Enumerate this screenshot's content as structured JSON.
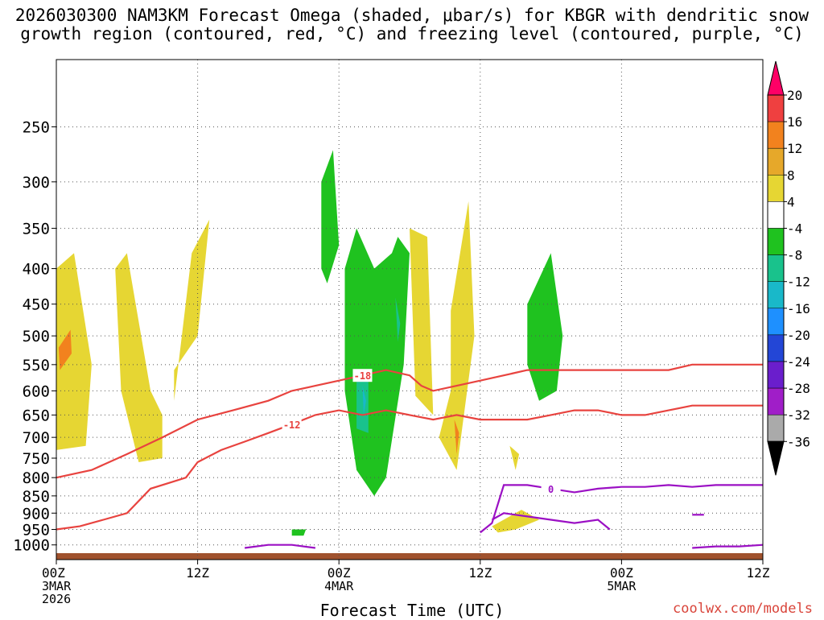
{
  "title_line1": "2026030300 NAM3KM Forecast Omega (shaded, μbar/s) for KBGR with dendritic snow",
  "title_line2": "growth region (contoured, red, °C) and freezing level (contoured, purple, °C)",
  "credit": "coolwx.com/models",
  "chart_data": {
    "type": "heatmap",
    "xlabel": "Forecast Time (UTC)",
    "ylabel": "",
    "x_ticks": [
      {
        "hour": 0,
        "label": "00Z",
        "date": "3MAR",
        "year": "2026"
      },
      {
        "hour": 12,
        "label": "12Z",
        "date": "",
        "year": ""
      },
      {
        "hour": 24,
        "label": "00Z",
        "date": "4MAR",
        "year": ""
      },
      {
        "hour": 36,
        "label": "12Z",
        "date": "",
        "year": ""
      },
      {
        "hour": 48,
        "label": "00Z",
        "date": "5MAR",
        "year": ""
      },
      {
        "hour": 60,
        "label": "12Z",
        "date": "",
        "year": ""
      }
    ],
    "xlim": [
      0,
      60
    ],
    "y_ticks": [
      250,
      300,
      350,
      400,
      450,
      500,
      550,
      600,
      650,
      700,
      750,
      800,
      850,
      900,
      950,
      1000
    ],
    "ylim": [
      1050,
      200
    ],
    "y_scale": "log",
    "grid": true,
    "colorbar": {
      "levels": [
        20,
        16,
        12,
        8,
        4,
        -4,
        -8,
        -12,
        -16,
        -20,
        -24,
        -28,
        -32,
        -36
      ],
      "colors": [
        "#ff0066",
        "#ef4040",
        "#f2821e",
        "#e6a82a",
        "#e6d633",
        "#ffffff",
        "#1fc21f",
        "#19c28c",
        "#19b8c9",
        "#1e90ff",
        "#2346d6",
        "#6a1ecc",
        "#a01ec8",
        "#aaaaaa",
        "#000000"
      ],
      "placement": "right"
    },
    "omega_areas": [
      {
        "color": "#e6d633",
        "t": [
          0.0,
          1.5,
          3.0,
          2.5,
          0.0
        ],
        "p": [
          400,
          380,
          550,
          720,
          730
        ]
      },
      {
        "color": "#f2821e",
        "t": [
          0.2,
          1.2,
          1.3,
          0.3
        ],
        "p": [
          520,
          490,
          530,
          560
        ]
      },
      {
        "color": "#e6d633",
        "t": [
          5.0,
          6.0,
          8.0,
          9.0,
          9.0,
          7.0,
          5.5
        ],
        "p": [
          400,
          380,
          600,
          650,
          750,
          760,
          600
        ]
      },
      {
        "color": "#e6d633",
        "t": [
          10.0,
          12.0,
          13.0,
          11.5,
          10.0
        ],
        "p": [
          560,
          500,
          340,
          380,
          620
        ]
      },
      {
        "color": "#1fc21f",
        "t": [
          22.5,
          23.5,
          24.0,
          23.0,
          22.5
        ],
        "p": [
          300,
          270,
          370,
          420,
          400
        ]
      },
      {
        "color": "#1fc21f",
        "t": [
          24.5,
          25.5,
          27.0,
          28.5,
          29.0,
          30.0,
          29.5,
          28.0,
          27.0,
          25.5,
          24.5
        ],
        "p": [
          400,
          350,
          400,
          380,
          360,
          380,
          550,
          800,
          850,
          780,
          600
        ]
      },
      {
        "color": "#19c28c",
        "t": [
          25.5,
          26.5,
          26.5,
          25.5
        ],
        "p": [
          570,
          580,
          690,
          680
        ]
      },
      {
        "color": "#19b8c9",
        "t": [
          26.0,
          26.3,
          26.1
        ],
        "p": [
          590,
          620,
          650
        ]
      },
      {
        "color": "#19c28c",
        "t": [
          28.8,
          29.2,
          29.0
        ],
        "p": [
          440,
          480,
          510
        ]
      },
      {
        "color": "#e6d633",
        "t": [
          30.0,
          31.5,
          32.0,
          30.5
        ],
        "p": [
          350,
          360,
          650,
          610
        ]
      },
      {
        "color": "#e6d633",
        "t": [
          33.5,
          35.0,
          35.5,
          34.0,
          32.5,
          33.5
        ],
        "p": [
          460,
          320,
          500,
          780,
          700,
          600
        ]
      },
      {
        "color": "#f2821e",
        "t": [
          33.8,
          34.2,
          34.0
        ],
        "p": [
          660,
          690,
          740
        ]
      },
      {
        "color": "#e6d633",
        "t": [
          38.5,
          39.3,
          39.0
        ],
        "p": [
          720,
          740,
          780
        ]
      },
      {
        "color": "#1fc21f",
        "t": [
          40.0,
          42.0,
          43.0,
          42.5,
          41.0,
          40.0
        ],
        "p": [
          450,
          380,
          500,
          600,
          620,
          550
        ]
      },
      {
        "color": "#e6d633",
        "t": [
          37.0,
          39.5,
          41.0,
          39.0,
          37.5
        ],
        "p": [
          940,
          890,
          920,
          950,
          960
        ]
      },
      {
        "color": "#1fc21f",
        "t": [
          20.0,
          21.2,
          21.0,
          20.0
        ],
        "p": [
          950,
          950,
          970,
          970
        ]
      }
    ],
    "dgz_contours": [
      {
        "label": "-18",
        "t": [
          0,
          3,
          6,
          9,
          12,
          15,
          18,
          20,
          22,
          24,
          26,
          28,
          30,
          31,
          32,
          34,
          36,
          38,
          40,
          42,
          44,
          46,
          48,
          50,
          52,
          54,
          56,
          58,
          60
        ],
        "p": [
          800,
          780,
          740,
          700,
          660,
          640,
          620,
          600,
          590,
          580,
          570,
          560,
          570,
          590,
          600,
          590,
          580,
          570,
          560,
          560,
          560,
          560,
          560,
          560,
          560,
          550,
          550,
          550,
          550
        ]
      },
      {
        "label": "-12",
        "t": [
          0,
          2,
          4,
          6,
          8,
          10,
          11,
          12,
          14,
          16,
          18,
          20,
          22,
          24,
          26,
          28,
          30,
          32,
          34,
          36,
          38,
          40,
          42,
          44,
          46,
          48,
          50,
          52,
          54,
          56,
          58,
          60
        ],
        "p": [
          950,
          940,
          920,
          900,
          830,
          810,
          800,
          760,
          730,
          710,
          690,
          670,
          650,
          640,
          650,
          640,
          650,
          660,
          650,
          660,
          660,
          660,
          650,
          640,
          640,
          650,
          650,
          640,
          630,
          630,
          630,
          630
        ]
      }
    ],
    "freezing_contours": [
      {
        "label": "0",
        "t": [
          36,
          37,
          38,
          40,
          42,
          44,
          46,
          48,
          50,
          52,
          54,
          56,
          58,
          60
        ],
        "p": [
          960,
          930,
          820,
          820,
          830,
          840,
          830,
          825,
          825,
          820,
          825,
          820,
          820,
          820
        ]
      },
      {
        "label": "",
        "t": [
          37,
          38,
          40,
          42,
          44,
          46,
          47
        ],
        "p": [
          920,
          900,
          910,
          920,
          930,
          920,
          950
        ]
      },
      {
        "label": "",
        "t": [
          16,
          18,
          20,
          22
        ],
        "p": [
          1010,
          1000,
          1000,
          1010
        ]
      },
      {
        "label": "",
        "t": [
          54,
          56,
          58,
          60
        ],
        "p": [
          1010,
          1005,
          1005,
          1000
        ]
      },
      {
        "label": "",
        "t": [
          54,
          55
        ],
        "p": [
          905,
          905
        ]
      }
    ]
  }
}
